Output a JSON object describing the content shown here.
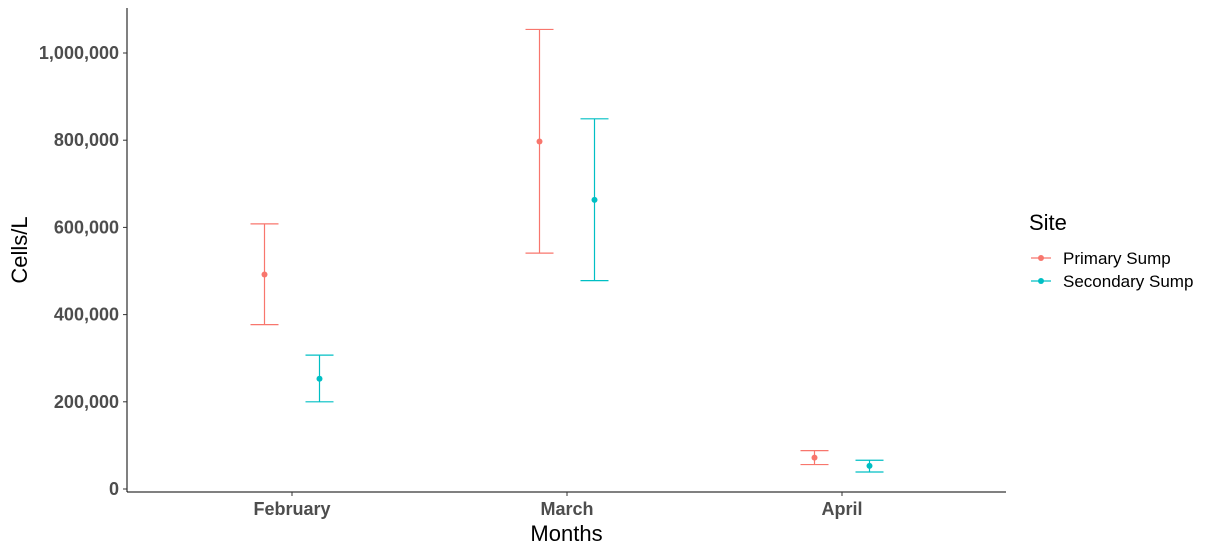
{
  "chart_data": {
    "type": "scatter",
    "subtype": "point-with-errorbars",
    "title": "",
    "xlabel": "Months",
    "ylabel": "Cells/L",
    "categories": [
      "February",
      "March",
      "April"
    ],
    "ylim": [
      0,
      1100000
    ],
    "yticks": [
      0,
      200000,
      400000,
      600000,
      800000,
      1000000
    ],
    "ytick_labels": [
      "0",
      "200,000",
      "400,000",
      "600,000",
      "800,000",
      "1,000,000"
    ],
    "grid": false,
    "legend": {
      "title": "Site",
      "position": "right"
    },
    "series": [
      {
        "name": "Primary Sump",
        "color": "#F8766D",
        "values": [
          492000,
          797000,
          72000
        ],
        "lower": [
          377000,
          541000,
          56000
        ],
        "upper": [
          608000,
          1054000,
          88000
        ]
      },
      {
        "name": "Secondary Sump",
        "color": "#00BFC4",
        "values": [
          253000,
          663000,
          53000
        ],
        "lower": [
          200000,
          478000,
          39000
        ],
        "upper": [
          307000,
          849000,
          66000
        ]
      }
    ]
  }
}
